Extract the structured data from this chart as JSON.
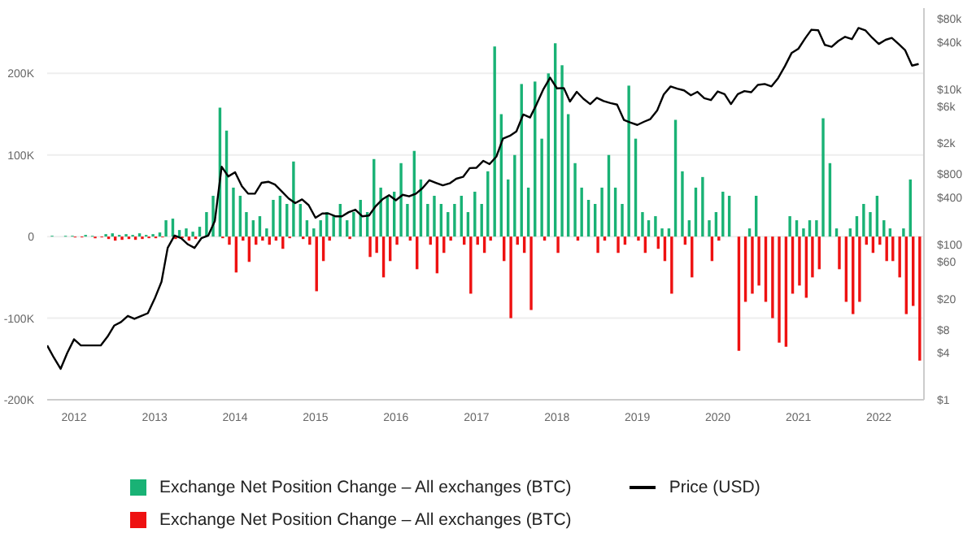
{
  "chart_data": {
    "type": "bar",
    "x": [
      "2011-09",
      "2011-10",
      "2011-11",
      "2011-12",
      "2012-01",
      "2012-02",
      "2012-03",
      "2012-04",
      "2012-05",
      "2012-06",
      "2012-07",
      "2012-08",
      "2012-09",
      "2012-10",
      "2012-11",
      "2012-12",
      "2013-01",
      "2013-02",
      "2013-03",
      "2013-04",
      "2013-05",
      "2013-06",
      "2013-07",
      "2013-08",
      "2013-09",
      "2013-10",
      "2013-11",
      "2013-12",
      "2014-01",
      "2014-02",
      "2014-03",
      "2014-04",
      "2014-05",
      "2014-06",
      "2014-07",
      "2014-08",
      "2014-09",
      "2014-10",
      "2014-11",
      "2014-12",
      "2015-01",
      "2015-02",
      "2015-03",
      "2015-04",
      "2015-05",
      "2015-06",
      "2015-07",
      "2015-08",
      "2015-09",
      "2015-10",
      "2015-11",
      "2015-12",
      "2016-01",
      "2016-02",
      "2016-03",
      "2016-04",
      "2016-05",
      "2016-06",
      "2016-07",
      "2016-08",
      "2016-09",
      "2016-10",
      "2016-11",
      "2016-12",
      "2017-01",
      "2017-02",
      "2017-03",
      "2017-04",
      "2017-05",
      "2017-06",
      "2017-07",
      "2017-08",
      "2017-09",
      "2017-10",
      "2017-11",
      "2017-12",
      "2018-01",
      "2018-02",
      "2018-03",
      "2018-04",
      "2018-05",
      "2018-06",
      "2018-07",
      "2018-08",
      "2018-09",
      "2018-10",
      "2018-11",
      "2018-12",
      "2019-01",
      "2019-02",
      "2019-03",
      "2019-04",
      "2019-05",
      "2019-06",
      "2019-07",
      "2019-08",
      "2019-09",
      "2019-10",
      "2019-11",
      "2019-12",
      "2020-01",
      "2020-02",
      "2020-03",
      "2020-04",
      "2020-05",
      "2020-06",
      "2020-07",
      "2020-08",
      "2020-09",
      "2020-10",
      "2020-11",
      "2020-12",
      "2021-01",
      "2021-02",
      "2021-03",
      "2021-04",
      "2021-05",
      "2021-06",
      "2021-07",
      "2021-08",
      "2021-09",
      "2021-10",
      "2021-11",
      "2021-12",
      "2022-01",
      "2022-02",
      "2022-03",
      "2022-04",
      "2022-05",
      "2022-06",
      "2022-07"
    ],
    "series": [
      {
        "name": "Exchange Net Position Change – All exchanges (BTC)",
        "color": "#19b275",
        "values": [
          null,
          1000,
          null,
          1000,
          1000,
          null,
          2000,
          1000,
          null,
          3000,
          4000,
          2000,
          3000,
          2000,
          4000,
          2000,
          3000,
          5000,
          20000,
          22000,
          8000,
          10000,
          6000,
          12000,
          30000,
          50000,
          158000,
          130000,
          60000,
          50000,
          30000,
          20000,
          25000,
          10000,
          45000,
          50000,
          40000,
          92000,
          40000,
          20000,
          10000,
          20000,
          30000,
          25000,
          40000,
          20000,
          30000,
          45000,
          30000,
          95000,
          60000,
          50000,
          55000,
          90000,
          40000,
          105000,
          70000,
          40000,
          50000,
          40000,
          30000,
          40000,
          50000,
          30000,
          55000,
          40000,
          80000,
          233000,
          150000,
          70000,
          100000,
          187000,
          60000,
          190000,
          120000,
          200000,
          237000,
          210000,
          150000,
          90000,
          60000,
          45000,
          40000,
          60000,
          100000,
          60000,
          40000,
          185000,
          120000,
          30000,
          20000,
          25000,
          10000,
          10000,
          143000,
          80000,
          20000,
          60000,
          73000,
          20000,
          30000,
          55000,
          50000,
          null,
          null,
          10000,
          50000,
          null,
          null,
          null,
          null,
          25000,
          20000,
          10000,
          20000,
          20000,
          145000,
          90000,
          10000,
          null,
          10000,
          25000,
          40000,
          30000,
          50000,
          20000,
          10000,
          null,
          10000,
          70000,
          null
        ]
      },
      {
        "name": "Exchange Net Position Change – All exchanges (BTC)",
        "color": "#ee1111",
        "values": [
          null,
          null,
          null,
          null,
          -1000,
          -1000,
          null,
          -2000,
          -1000,
          -3000,
          -5000,
          -4000,
          -3000,
          -4000,
          -3000,
          -2000,
          -2000,
          -1000,
          null,
          -3000,
          -2000,
          -5000,
          -3000,
          null,
          null,
          null,
          -2000,
          -10000,
          -44000,
          -5000,
          -31000,
          -10000,
          -5000,
          -10000,
          -5000,
          -15000,
          -2000,
          null,
          -3000,
          -10000,
          -67000,
          -30000,
          -5000,
          null,
          null,
          -3000,
          null,
          null,
          -25000,
          -20000,
          -50000,
          -30000,
          -10000,
          null,
          -5000,
          -40000,
          null,
          -10000,
          -45000,
          -20000,
          -5000,
          null,
          -10000,
          -70000,
          -10000,
          -20000,
          -5000,
          null,
          -30000,
          -100000,
          -10000,
          -20000,
          -90000,
          null,
          -5000,
          null,
          -20000,
          null,
          null,
          -5000,
          null,
          null,
          -20000,
          -5000,
          null,
          -20000,
          -10000,
          null,
          -5000,
          -20000,
          null,
          -15000,
          -30000,
          -70000,
          null,
          -10000,
          -50000,
          null,
          null,
          -30000,
          -5000,
          null,
          null,
          -140000,
          -80000,
          -70000,
          -60000,
          -80000,
          -100000,
          -130000,
          -135000,
          -70000,
          -60000,
          -75000,
          -50000,
          -40000,
          null,
          null,
          -40000,
          -80000,
          -95000,
          -80000,
          -10000,
          -20000,
          -10000,
          -30000,
          -30000,
          -50000,
          -95000,
          -85000,
          -152000
        ]
      },
      {
        "name": "Price (USD)",
        "type": "line",
        "axis": "y2",
        "color": "#000000",
        "values": [
          5,
          3.5,
          2.5,
          4,
          6,
          5,
          5,
          5,
          5,
          6.5,
          9,
          10,
          12,
          11,
          12,
          13,
          20,
          33,
          90,
          130,
          120,
          100,
          90,
          120,
          130,
          200,
          1000,
          750,
          850,
          560,
          450,
          450,
          620,
          640,
          590,
          480,
          390,
          340,
          380,
          320,
          220,
          250,
          250,
          230,
          230,
          260,
          280,
          230,
          235,
          310,
          380,
          430,
          370,
          435,
          415,
          450,
          530,
          670,
          620,
          575,
          610,
          700,
          740,
          960,
          970,
          1190,
          1080,
          1350,
          2300,
          2500,
          2850,
          4700,
          4300,
          6400,
          10000,
          14000,
          10200,
          10300,
          6900,
          9200,
          7500,
          6400,
          7700,
          7000,
          6600,
          6300,
          4000,
          3700,
          3450,
          3800,
          4100,
          5300,
          8500,
          10800,
          10100,
          9600,
          8300,
          9200,
          7600,
          7200,
          9300,
          8600,
          6400,
          8600,
          9400,
          9100,
          11300,
          11600,
          10800,
          13800,
          19700,
          29000,
          33000,
          45000,
          58000,
          57000,
          37000,
          35000,
          41500,
          47000,
          43800,
          61000,
          57000,
          46000,
          38000,
          43000,
          45500,
          38000,
          31500,
          20000,
          21000
        ]
      }
    ],
    "xlim": [
      "2011-09-01",
      "2022-07-25"
    ],
    "xticks": [
      "2012",
      "2013",
      "2014",
      "2015",
      "2016",
      "2017",
      "2018",
      "2019",
      "2020",
      "2021",
      "2022"
    ],
    "ylim": [
      -200000,
      280000
    ],
    "yticks": [
      {
        "value": -200000,
        "label": "-200K"
      },
      {
        "value": -100000,
        "label": "-100K"
      },
      0,
      {
        "value": 100000,
        "label": "100K"
      },
      {
        "value": 200000,
        "label": "200K"
      }
    ],
    "y2lim": [
      1,
      110000
    ],
    "y2ticks": [
      {
        "value": 1,
        "label": "$1"
      },
      {
        "value": 4,
        "label": "$4"
      },
      {
        "value": 8,
        "label": "$8"
      },
      {
        "value": 20,
        "label": "$20"
      },
      {
        "value": 60,
        "label": "$60"
      },
      {
        "value": 100,
        "label": "$100"
      },
      {
        "value": 400,
        "label": "$400"
      },
      {
        "value": 800,
        "label": "$800"
      },
      {
        "value": 2000,
        "label": "$2k"
      },
      {
        "value": 6000,
        "label": "$6k"
      },
      {
        "value": 10000,
        "label": "$10k"
      },
      {
        "value": 40000,
        "label": "$40k"
      },
      {
        "value": 80000,
        "label": "$80k"
      }
    ],
    "log": "y2",
    "grid": "y",
    "legend": "bottom"
  }
}
